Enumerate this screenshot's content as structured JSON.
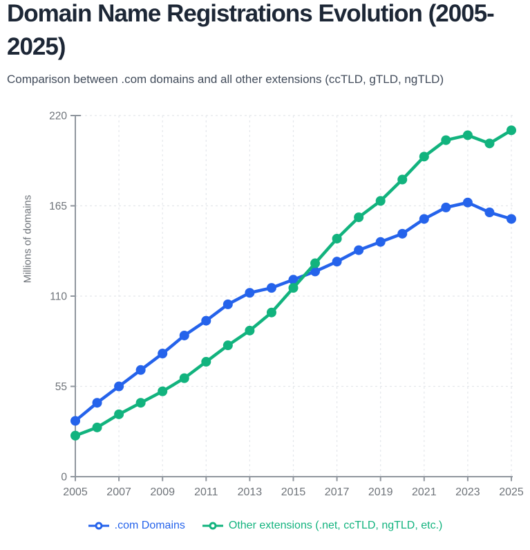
{
  "header": {
    "title": "Domain Name Registrations Evolution (2005-2025)",
    "subtitle": "Comparison between .com domains and all other extensions (ccTLD, gTLD, ngTLD)"
  },
  "chart_data": {
    "type": "line",
    "x": [
      2005,
      2006,
      2007,
      2008,
      2009,
      2010,
      2011,
      2012,
      2013,
      2014,
      2015,
      2016,
      2017,
      2018,
      2019,
      2020,
      2021,
      2022,
      2023,
      2024,
      2025
    ],
    "series": [
      {
        "name": ".com Domains",
        "color": "#2563eb",
        "values": [
          34,
          45,
          55,
          65,
          75,
          86,
          95,
          105,
          112,
          115,
          120,
          125,
          131,
          138,
          143,
          148,
          157,
          164,
          167,
          161,
          157
        ]
      },
      {
        "name": "Other extensions (.net, ccTLD, ngTLD, etc.)",
        "color": "#12b37e",
        "values": [
          25,
          30,
          38,
          45,
          52,
          60,
          70,
          80,
          89,
          100,
          115,
          130,
          145,
          158,
          168,
          181,
          195,
          205,
          208,
          203,
          211
        ]
      }
    ],
    "ylabel": "Millions of domains",
    "ylim": [
      0,
      220
    ],
    "yticks": [
      0,
      55,
      110,
      165,
      220
    ],
    "xticks": [
      2005,
      2007,
      2009,
      2011,
      2013,
      2015,
      2017,
      2019,
      2021,
      2023,
      2025
    ],
    "grid": "dashed",
    "legend_position": "bottom",
    "marker": "circle"
  },
  "colors": {
    "background": "#ffffff",
    "title_text": "#1d2736",
    "subtitle_text": "#414b5a",
    "axis": "#8f959d",
    "tick_labels": "#6e7379",
    "gridlines": "#e4e7eb"
  }
}
